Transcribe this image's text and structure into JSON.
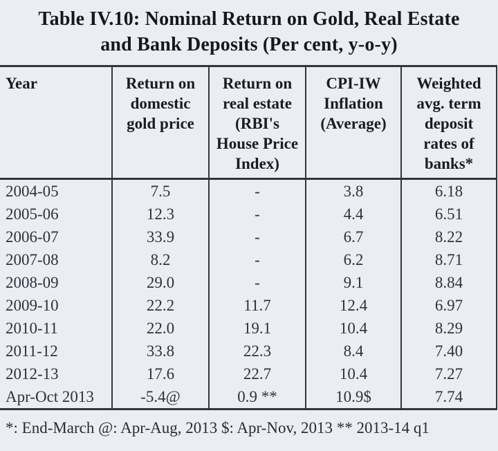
{
  "title": {
    "line1": "Table IV.10: Nominal Return on Gold, Real Estate",
    "line2": "and Bank Deposits (Per cent, y-o-y)"
  },
  "table": {
    "headers": [
      "Year",
      "Return on\ndomestic\ngold price",
      "Return on\nreal estate\n(RBI's\nHouse Price\nIndex)",
      "CPI-IW\nInflation\n(Average)",
      "Weighted\navg. term\ndeposit\nrates of\nbanks*"
    ],
    "rows": [
      [
        "2004-05",
        "7.5",
        "-",
        "3.8",
        "6.18"
      ],
      [
        "2005-06",
        "12.3",
        "-",
        "4.4",
        "6.51"
      ],
      [
        "2006-07",
        "33.9",
        "-",
        "6.7",
        "8.22"
      ],
      [
        "2007-08",
        "8.2",
        "-",
        "6.2",
        "8.71"
      ],
      [
        "2008-09",
        "29.0",
        "-",
        "9.1",
        "8.84"
      ],
      [
        "2009-10",
        "22.2",
        "11.7",
        "12.4",
        "6.97"
      ],
      [
        "2010-11",
        "22.0",
        "19.1",
        "10.4",
        "8.29"
      ],
      [
        "2011-12",
        "33.8",
        "22.3",
        "8.4",
        "7.40"
      ],
      [
        "2012-13",
        "17.6",
        "22.7",
        "10.4",
        "7.27"
      ],
      [
        "Apr-Oct 2013",
        "-5.4@",
        "0.9 **",
        "10.9$",
        "7.74"
      ]
    ]
  },
  "footnote": "*: End-March @: Apr-Aug, 2013 $: Apr-Nov, 2013 ** 2013-14 q1",
  "colors": {
    "background": "#ecedf4",
    "border": "#33333c",
    "title_text": "#17171f",
    "body_text": "#30303a"
  }
}
